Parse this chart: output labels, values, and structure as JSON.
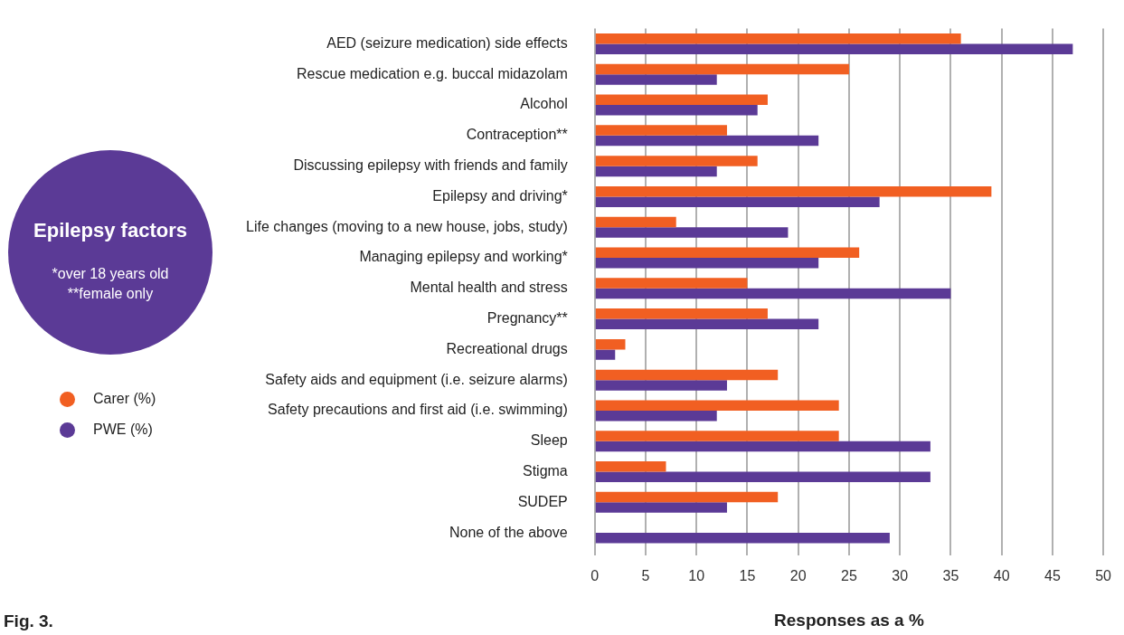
{
  "chart_data": {
    "type": "bar",
    "orientation": "horizontal",
    "title": "Epilepsy factors",
    "categories": [
      "AED (seizure medication) side effects",
      "Rescue medication e.g. buccal midazolam",
      "Alcohol",
      "Contraception**",
      "Discussing epilepsy with friends and family",
      "Epilepsy and driving*",
      "Life changes (moving to a new house, jobs, study)",
      "Managing epilepsy and working*",
      "Mental health and stress",
      "Pregnancy**",
      "Recreational drugs",
      "Safety aids and equipment (i.e. seizure alarms)",
      "Safety precautions and first aid (i.e. swimming)",
      "Sleep",
      "Stigma",
      "SUDEP",
      "None of the above"
    ],
    "series": [
      {
        "name": "Carer (%)",
        "color": "#f15f22",
        "values": [
          36,
          25,
          17,
          13,
          16,
          39,
          8,
          26,
          15,
          17,
          3,
          18,
          24,
          24,
          7,
          18,
          0
        ]
      },
      {
        "name": "PWE (%)",
        "color": "#5b3a96",
        "values": [
          47,
          12,
          16,
          22,
          12,
          28,
          19,
          22,
          35,
          22,
          2,
          13,
          12,
          33,
          33,
          13,
          29
        ]
      }
    ],
    "xlim": [
      0,
      50
    ],
    "xticks": [
      0,
      5,
      10,
      15,
      20,
      25,
      30,
      35,
      40,
      45,
      50
    ],
    "xlabel": "Responses as a %",
    "grid": "x",
    "legend": "left",
    "annotations": [
      "*over 18 years old\n**female only",
      "Fig. 3."
    ]
  }
}
